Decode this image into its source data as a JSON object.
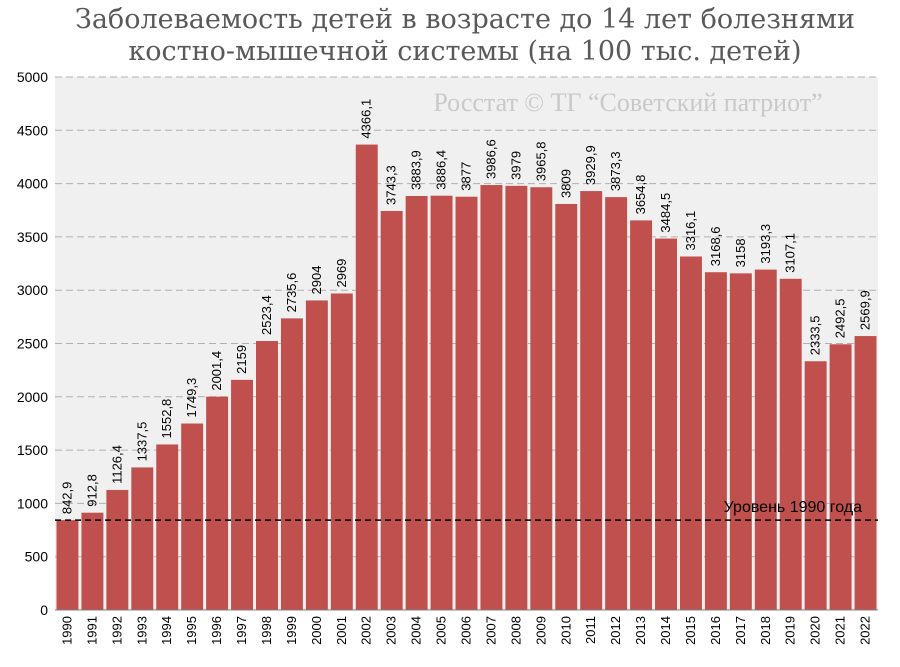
{
  "chart_data": {
    "type": "bar",
    "title_line1": "Заболеваемость детей в возрасте до 14 лет болезнями",
    "title_line2": "костно-мышечной системы (на 100 тыс. детей)",
    "watermark": "Росстат © ТГ “Советский патриот”",
    "categories": [
      "1990",
      "1991",
      "1992",
      "1993",
      "1994",
      "1995",
      "1996",
      "1997",
      "1998",
      "1999",
      "2000",
      "2001",
      "2002",
      "2003",
      "2004",
      "2005",
      "2006",
      "2007",
      "2008",
      "2009",
      "2010",
      "2011",
      "2012",
      "2013",
      "2014",
      "2015",
      "2016",
      "2017",
      "2018",
      "2019",
      "2020",
      "2021",
      "2022"
    ],
    "values": [
      842.9,
      912.8,
      1126.4,
      1337.5,
      1552.8,
      1749.3,
      2001.4,
      2159,
      2523.4,
      2735.6,
      2904,
      2969,
      4366.1,
      3743.3,
      3883.9,
      3886.4,
      3877,
      3986.6,
      3979,
      3965.8,
      3809,
      3929.9,
      3873.3,
      3654.8,
      3484.5,
      3316.1,
      3168.6,
      3158,
      3193.3,
      3107.1,
      2333.5,
      2492.5,
      2569.9
    ],
    "value_labels": [
      "842,9",
      "912,8",
      "1126,4",
      "1337,5",
      "1552,8",
      "1749,3",
      "2001,4",
      "2159",
      "2523,4",
      "2735,6",
      "2904",
      "2969",
      "4366,1",
      "3743,3",
      "3883,9",
      "3886,4",
      "3877",
      "3986,6",
      "3979",
      "3965,8",
      "3809",
      "3929,9",
      "3873,3",
      "3654,8",
      "3484,5",
      "3316,1",
      "3168,6",
      "3158",
      "3193,3",
      "3107,1",
      "2333,5",
      "2492,5",
      "2569,9"
    ],
    "ylim": [
      0,
      5000
    ],
    "yticks": [
      0,
      500,
      1000,
      1500,
      2000,
      2500,
      3000,
      3500,
      4000,
      4500,
      5000
    ],
    "grid": true,
    "reference_line": {
      "value": 842.9,
      "label": "Уровень 1990 года"
    },
    "colors": {
      "bar": "#c0504d",
      "plot_bg": "#f0f0f0",
      "grid": "#b0b0b0"
    }
  }
}
